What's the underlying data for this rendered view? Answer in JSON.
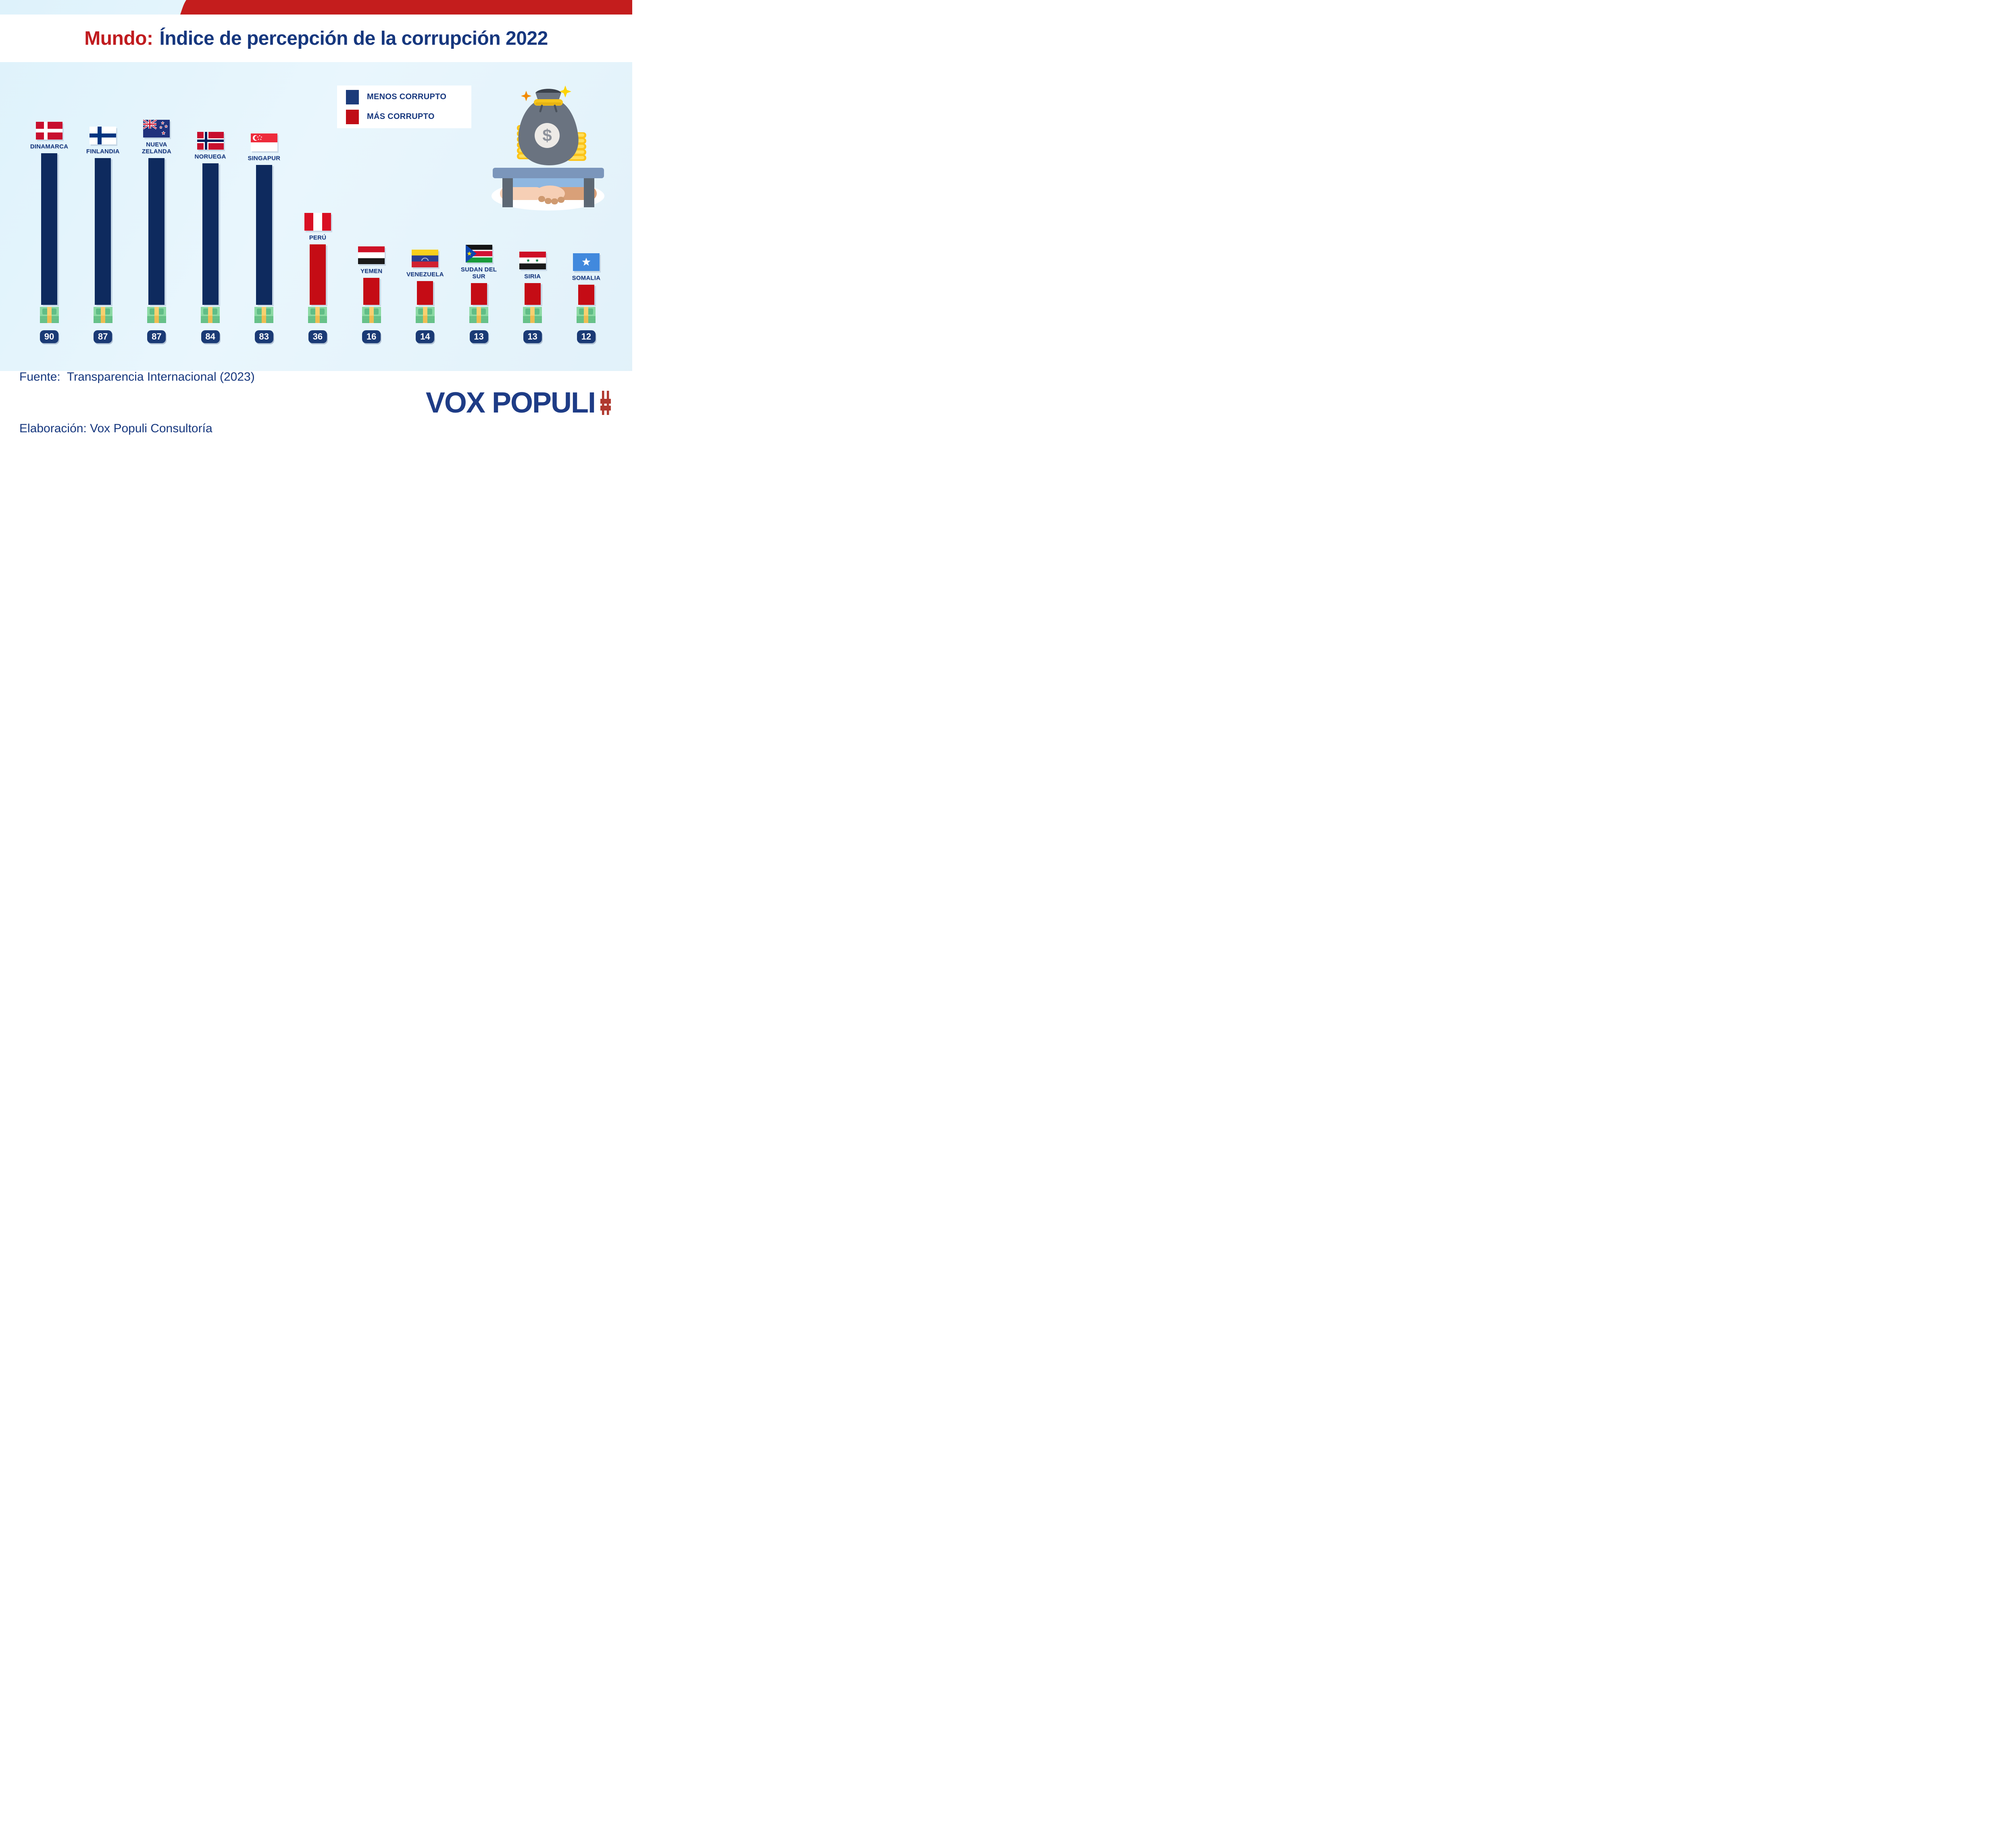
{
  "title": {
    "prefix": "Mundo:",
    "rest": "Índice de percepción de la corrupción 2022"
  },
  "legend": {
    "items": [
      {
        "label": "MENOS CORRUPTO",
        "color": "#1c3b7a"
      },
      {
        "label": "MÁS CORRUPTO",
        "color": "#c00d16"
      }
    ]
  },
  "chart_data": {
    "type": "bar",
    "title": "Mundo: Índice de percepción de la corrupción 2022",
    "categories": [
      "Dinamarca",
      "Finlandia",
      "Nueva Zelanda",
      "Noruega",
      "Singapur",
      "Perú",
      "Yemen",
      "Venezuela",
      "Sudan del Sur",
      "Siria",
      "Somalia"
    ],
    "values": [
      90,
      87,
      87,
      84,
      83,
      36,
      16,
      14,
      13,
      13,
      12
    ],
    "groups": [
      "menos corrupto",
      "menos corrupto",
      "menos corrupto",
      "menos corrupto",
      "menos corrupto",
      "más corrupto",
      "más corrupto",
      "más corrupto",
      "más corrupto",
      "más corrupto",
      "más corrupto"
    ],
    "legend": [
      "MENOS CORRUPTO",
      "MÁS CORRUPTO"
    ],
    "legend_position": "top-right",
    "group_colors": {
      "menos corrupto": "#0e2a5e",
      "más corrupto": "#c50c15"
    },
    "ylim": [
      0,
      100
    ],
    "grid": false,
    "value_labels": "badges below bars",
    "source": "Transparencia Internacional (2023)"
  },
  "countries": [
    {
      "label_lines": [
        "DINAMARCA"
      ],
      "value": 90,
      "flag": "dk",
      "group": "less"
    },
    {
      "label_lines": [
        "FINLANDIA"
      ],
      "value": 87,
      "flag": "fi",
      "group": "less"
    },
    {
      "label_lines": [
        "NUEVA",
        "ZELANDA"
      ],
      "value": 87,
      "flag": "nz",
      "group": "less"
    },
    {
      "label_lines": [
        "NORUEGA"
      ],
      "value": 84,
      "flag": "no",
      "group": "less"
    },
    {
      "label_lines": [
        "SINGAPUR"
      ],
      "value": 83,
      "flag": "sg",
      "group": "less"
    },
    {
      "label_lines": [
        "PERÚ"
      ],
      "value": 36,
      "flag": "pe",
      "group": "more"
    },
    {
      "label_lines": [
        "YEMEN"
      ],
      "value": 16,
      "flag": "ye",
      "group": "more"
    },
    {
      "label_lines": [
        "VENEZUELA"
      ],
      "value": 14,
      "flag": "ve",
      "group": "more"
    },
    {
      "label_lines": [
        "SUDAN DEL",
        "SUR"
      ],
      "value": 13,
      "flag": "ss",
      "group": "more"
    },
    {
      "label_lines": [
        "SIRIA"
      ],
      "value": 13,
      "flag": "sy",
      "group": "more"
    },
    {
      "label_lines": [
        "SOMALIA"
      ],
      "value": 12,
      "flag": "so",
      "group": "more"
    }
  ],
  "footer": {
    "source": "Fuente:  Transparencia Internacional (2023)",
    "elaboration": "Elaboración: Vox Populi Consultoría",
    "logo_text": "VOX POPULI",
    "logo_symbol": "#"
  },
  "colors": {
    "background_top": "#def2fb",
    "background_bottom": "#e1f1f9",
    "band_red": "#c41d1d",
    "navy": "#0e2a5e",
    "navy_text": "#16377e",
    "red_bar": "#c50c15",
    "badge": "#1a3a75",
    "title_red": "#c01b1f",
    "logo_red": "#b0392f",
    "white": "#ffffff"
  }
}
